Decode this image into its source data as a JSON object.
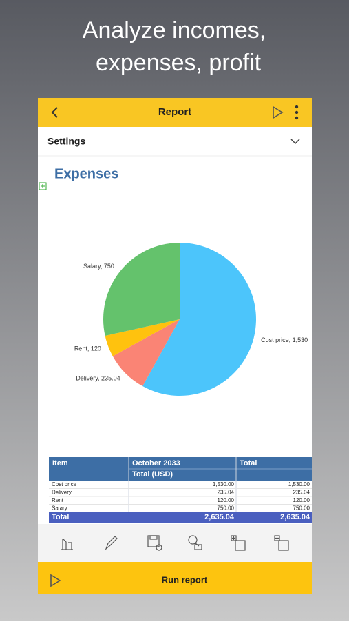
{
  "headline": [
    "Analyze incomes,",
    "expenses, profit"
  ],
  "header": {
    "title": "Report"
  },
  "settings": {
    "label": "Settings"
  },
  "chart_data": {
    "type": "pie",
    "title": "Expenses",
    "categories": [
      "Cost price",
      "Delivery",
      "Rent",
      "Salary"
    ],
    "values": [
      1530,
      235.04,
      120,
      750
    ],
    "value_labels": [
      "Cost price, 1,530",
      "Delivery, 235.04",
      "Rent, 120",
      "Salary, 750"
    ],
    "colors": [
      "#4cc5fb",
      "#fa8475",
      "#ffc20e",
      "#64c26c"
    ]
  },
  "table": {
    "header": [
      "Item",
      "October 2033",
      "Total"
    ],
    "subheader": "Total (USD)",
    "rows": [
      [
        "1,530.00",
        "1,530.00"
      ],
      [
        "235.04",
        "235.04"
      ],
      [
        "120.00",
        "120.00"
      ],
      [
        "750.00",
        "750.00"
      ]
    ],
    "total": [
      "Total",
      "2,635.04",
      "2,635.04"
    ]
  },
  "footer": {
    "button": "Run report"
  }
}
